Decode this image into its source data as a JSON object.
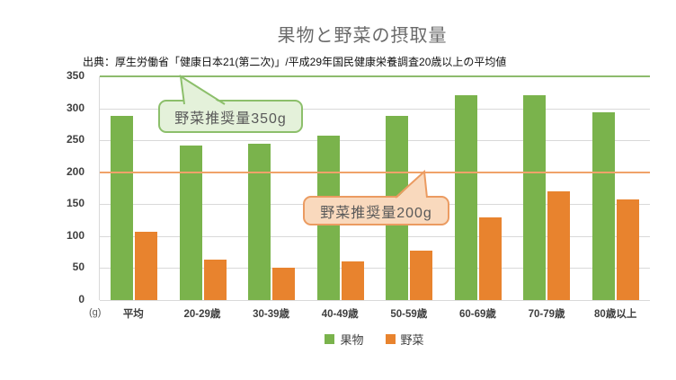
{
  "title": "果物と野菜の摂取量",
  "subtitle": "出典：厚生労働省「健康日本21(第二次)」/平成29年国民健康栄養調査20歳以上の平均値",
  "unit_label": "(g)",
  "annotations": {
    "veg350": {
      "text": "野菜推奨量350g",
      "value": 350
    },
    "veg200": {
      "text": "野菜推奨量200g",
      "value": 200
    }
  },
  "colors": {
    "fruit_bar": "#7ab34c",
    "veg_bar": "#e8832e",
    "ref_350_line": "#8dbb6d",
    "ref_200_line": "#f0a269",
    "grid": "#d9d9d9",
    "title_text": "#6a6a6a",
    "axis_text": "#3f3f3f",
    "bubble_green_bg": "#e4f1da",
    "bubble_green_border": "#8cbf6b",
    "bubble_orange_bg": "#f9d9bd",
    "bubble_orange_border": "#eb9b61"
  },
  "chart_data": {
    "type": "bar",
    "categories": [
      "平均",
      "20-29歳",
      "30-39歳",
      "40-49歳",
      "50-59歳",
      "60-69歳",
      "70-79歳",
      "80歳以上"
    ],
    "series": [
      {
        "name": "果物",
        "color": "#7ab34c",
        "values": [
          288,
          242,
          245,
          257,
          288,
          320,
          320,
          294
        ]
      },
      {
        "name": "野菜",
        "color": "#e8832e",
        "values": [
          107,
          63,
          50,
          60,
          78,
          130,
          170,
          157
        ]
      }
    ],
    "reference_lines": [
      {
        "value": 350,
        "color": "#8dbb6d",
        "label": "野菜推奨量350g"
      },
      {
        "value": 200,
        "color": "#f0a269",
        "label": "野菜推奨量200g"
      }
    ],
    "title": "果物と野菜の摂取量",
    "xlabel": "",
    "ylabel": "(g)",
    "ylim": [
      0,
      350
    ],
    "yticks": [
      0,
      50,
      100,
      150,
      200,
      250,
      300,
      350
    ],
    "grid": true,
    "legend_position": "bottom"
  }
}
